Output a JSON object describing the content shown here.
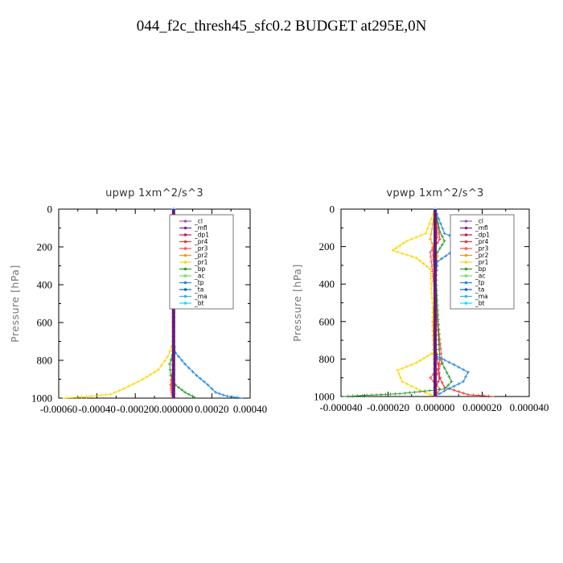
{
  "figure": {
    "title": "044_f2c_thresh45_sfc0.2  BUDGET at295E,0N"
  },
  "chart_data": [
    {
      "type": "line",
      "title": "upwp   1xm^2/s^3",
      "ylabel": "Pressure [hPa]",
      "xlabel": "",
      "xlim": [
        -0.0006,
        0.0004
      ],
      "ylim": [
        1000,
        0
      ],
      "xtick_labels": [
        "-0.00060",
        "-0.00040",
        "-0.00020",
        "0.000000",
        "0.00020",
        "0.00040"
      ],
      "xticks": [
        -0.0006,
        -0.0004,
        -0.0002,
        0.0,
        0.0002,
        0.0004
      ],
      "ytick_labels": [
        "0",
        "200",
        "400",
        "600",
        "800",
        "1000"
      ],
      "yticks": [
        0,
        200,
        400,
        600,
        800,
        1000
      ],
      "legend_position": "top-right",
      "series": [
        {
          "name": "_cl",
          "color": "#9b59b6",
          "x": [
            0,
            0,
            0,
            0
          ],
          "y": [
            0,
            500,
            900,
            1000
          ]
        },
        {
          "name": "_mfl",
          "color": "#7b1fa2",
          "x": [
            0,
            0,
            0,
            0
          ],
          "y": [
            0,
            500,
            900,
            1000
          ]
        },
        {
          "name": "_dp1",
          "color": "#c2185b",
          "x": [
            0,
            0,
            0,
            -5e-06,
            0
          ],
          "y": [
            0,
            500,
            900,
            960,
            1000
          ]
        },
        {
          "name": "_pr4",
          "color": "#e53935",
          "x": [
            0,
            0,
            -5e-06,
            -1.5e-05,
            -1e-05,
            -5e-06
          ],
          "y": [
            0,
            700,
            850,
            930,
            970,
            1000
          ]
        },
        {
          "name": "_pr3",
          "color": "#ff5252",
          "x": [
            0,
            0,
            -8e-06,
            -1.2e-05,
            -6e-06
          ],
          "y": [
            0,
            800,
            900,
            960,
            1000
          ]
        },
        {
          "name": "_pr2",
          "color": "#ff9800",
          "x": [
            0,
            0,
            -5e-06,
            0,
            0,
            0
          ],
          "y": [
            0,
            140,
            200,
            260,
            600,
            1000
          ]
        },
        {
          "name": "_pr1",
          "color": "#ffd600",
          "x": [
            0,
            0,
            -3e-05,
            -8e-05,
            -0.00016,
            -0.00026,
            -0.00033,
            -0.00048,
            -0.00058
          ],
          "y": [
            0,
            700,
            780,
            850,
            900,
            950,
            980,
            995,
            1000
          ]
        },
        {
          "name": "_bp",
          "color": "#2e9e2e",
          "x": [
            0,
            0,
            -2e-05,
            -1.5e-05,
            1e-05,
            6e-05,
            0.00012
          ],
          "y": [
            0,
            750,
            820,
            880,
            930,
            970,
            1000
          ]
        },
        {
          "name": "_ac",
          "color": "#66e066",
          "x": [
            0,
            0,
            0,
            0
          ],
          "y": [
            0,
            500,
            900,
            1000
          ]
        },
        {
          "name": "_tp",
          "color": "#1e88e5",
          "x": [
            0,
            0,
            1e-05,
            6e-05,
            0.00012,
            0.00018,
            0.00022,
            0.00028,
            0.00036
          ],
          "y": [
            0,
            700,
            760,
            820,
            880,
            930,
            970,
            990,
            1000
          ]
        },
        {
          "name": "_ta",
          "color": "#1565c0",
          "x": [
            0,
            0,
            0,
            0
          ],
          "y": [
            0,
            500,
            900,
            1000
          ]
        },
        {
          "name": "_ma",
          "color": "#29b6f6",
          "x": [
            0,
            0,
            0,
            0
          ],
          "y": [
            0,
            500,
            900,
            1000
          ]
        },
        {
          "name": "_bt",
          "color": "#00e5ff",
          "x": [
            0,
            0,
            0,
            0
          ],
          "y": [
            0,
            500,
            900,
            1000
          ]
        }
      ]
    },
    {
      "type": "line",
      "title": "vpwp   1xm^2/s^3",
      "ylabel": "Pressure [hPa]",
      "xlabel": "",
      "xlim": [
        -4e-05,
        4e-05
      ],
      "ylim": [
        1000,
        0
      ],
      "xtick_labels": [
        "-0.000040",
        "-0.000020",
        "0.000000",
        "0.000020",
        "0.000040"
      ],
      "xticks": [
        -4e-05,
        -2e-05,
        0.0,
        2e-05,
        4e-05
      ],
      "ytick_labels": [
        "0",
        "200",
        "400",
        "600",
        "800",
        "1000"
      ],
      "yticks": [
        0,
        200,
        400,
        600,
        800,
        1000
      ],
      "legend_position": "top-right",
      "series": [
        {
          "name": "_cl",
          "color": "#9b59b6",
          "x": [
            0,
            0,
            0,
            0
          ],
          "y": [
            0,
            500,
            900,
            1000
          ]
        },
        {
          "name": "_mfl",
          "color": "#7b1fa2",
          "x": [
            0,
            0,
            0,
            0
          ],
          "y": [
            0,
            500,
            900,
            1000
          ]
        },
        {
          "name": "_dp1",
          "color": "#c2185b",
          "x": [
            0,
            0,
            2e-06,
            0,
            0
          ],
          "y": [
            0,
            700,
            900,
            960,
            1000
          ]
        },
        {
          "name": "_pr4",
          "color": "#e53935",
          "x": [
            0,
            2e-06,
            -1e-06,
            2e-06,
            1e-06,
            4e-06,
            1.4e-05,
            2.5e-05
          ],
          "y": [
            0,
            160,
            220,
            800,
            880,
            950,
            990,
            1000
          ]
        },
        {
          "name": "_pr3",
          "color": "#ff5252",
          "x": [
            0,
            1e-06,
            -2e-06,
            3e-06,
            -2e-06,
            2e-06,
            0
          ],
          "y": [
            0,
            150,
            230,
            820,
            900,
            960,
            1000
          ]
        },
        {
          "name": "_pr2",
          "color": "#ff9800",
          "x": [
            0,
            -2e-06,
            1e-06,
            -1e-06,
            0
          ],
          "y": [
            0,
            160,
            250,
            600,
            1000
          ]
        },
        {
          "name": "_pr1",
          "color": "#ffd600",
          "x": [
            0,
            -4e-06,
            -1.2e-05,
            -1.8e-05,
            -8e-06,
            -2e-06,
            0,
            -8e-06,
            -1.6e-05,
            -1.4e-05,
            -6e-06,
            0
          ],
          "y": [
            0,
            130,
            170,
            220,
            260,
            320,
            760,
            820,
            860,
            920,
            970,
            1000
          ]
        },
        {
          "name": "_bp",
          "color": "#2e9e2e",
          "x": [
            0,
            2e-06,
            4e-06,
            0,
            2e-06,
            7e-06,
            4e-06,
            -1.5e-05,
            -3.9e-05
          ],
          "y": [
            0,
            120,
            170,
            250,
            800,
            920,
            960,
            985,
            1000
          ]
        },
        {
          "name": "_ac",
          "color": "#66e066",
          "x": [
            0,
            0,
            0,
            0
          ],
          "y": [
            0,
            500,
            900,
            1000
          ]
        },
        {
          "name": "_tp",
          "color": "#1e88e5",
          "x": [
            0,
            4e-06,
            1.2e-05,
            8e-06,
            1e-06,
            0,
            0,
            8e-06,
            1.4e-05,
            1.2e-05,
            4e-06,
            0
          ],
          "y": [
            0,
            130,
            170,
            220,
            280,
            400,
            780,
            830,
            870,
            920,
            970,
            1000
          ]
        },
        {
          "name": "_ta",
          "color": "#1565c0",
          "x": [
            0,
            0,
            0,
            0
          ],
          "y": [
            0,
            500,
            900,
            1000
          ]
        },
        {
          "name": "_ma",
          "color": "#29b6f6",
          "x": [
            0,
            0,
            0,
            0
          ],
          "y": [
            0,
            500,
            900,
            1000
          ]
        },
        {
          "name": "_bt",
          "color": "#00e5ff",
          "x": [
            0,
            0,
            0,
            0
          ],
          "y": [
            0,
            500,
            900,
            1000
          ]
        }
      ]
    }
  ]
}
